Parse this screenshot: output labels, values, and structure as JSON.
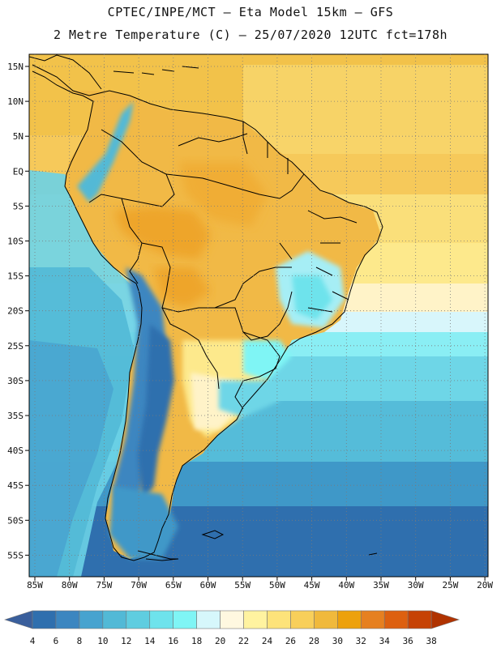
{
  "header": {
    "line1": "CPTEC/INPE/MCT –  Eta Model 15km – GFS",
    "line2": "2 Metre Temperature (C) – 25/07/2020 12UTC fct=178h"
  },
  "map": {
    "lat_labels": [
      "15N",
      "10N",
      "5N",
      "EQ",
      "5S",
      "10S",
      "15S",
      "20S",
      "25S",
      "30S",
      "35S",
      "40S",
      "45S",
      "50S",
      "55S"
    ],
    "lon_labels": [
      "85W",
      "80W",
      "75W",
      "70W",
      "65W",
      "60W",
      "55W",
      "50W",
      "45W",
      "40W",
      "35W",
      "30W",
      "25W",
      "20W"
    ],
    "grid": "dotted"
  },
  "colorbar": {
    "labels": [
      "4",
      "6",
      "8",
      "10",
      "12",
      "14",
      "16",
      "18",
      "20",
      "22",
      "24",
      "26",
      "28",
      "30",
      "32",
      "34",
      "36",
      "38"
    ],
    "colors": [
      "#3a5f9c",
      "#2f6fae",
      "#3c86c0",
      "#47a3cf",
      "#52b9d6",
      "#5fcde0",
      "#6ee3ec",
      "#7ff5f5",
      "#d6f7fb",
      "#fff8e0",
      "#fff3a0",
      "#fde37a",
      "#f8cf5a",
      "#f0b93c",
      "#eda10c",
      "#e68020",
      "#dd6010",
      "#c64205",
      "#b03300"
    ]
  }
}
